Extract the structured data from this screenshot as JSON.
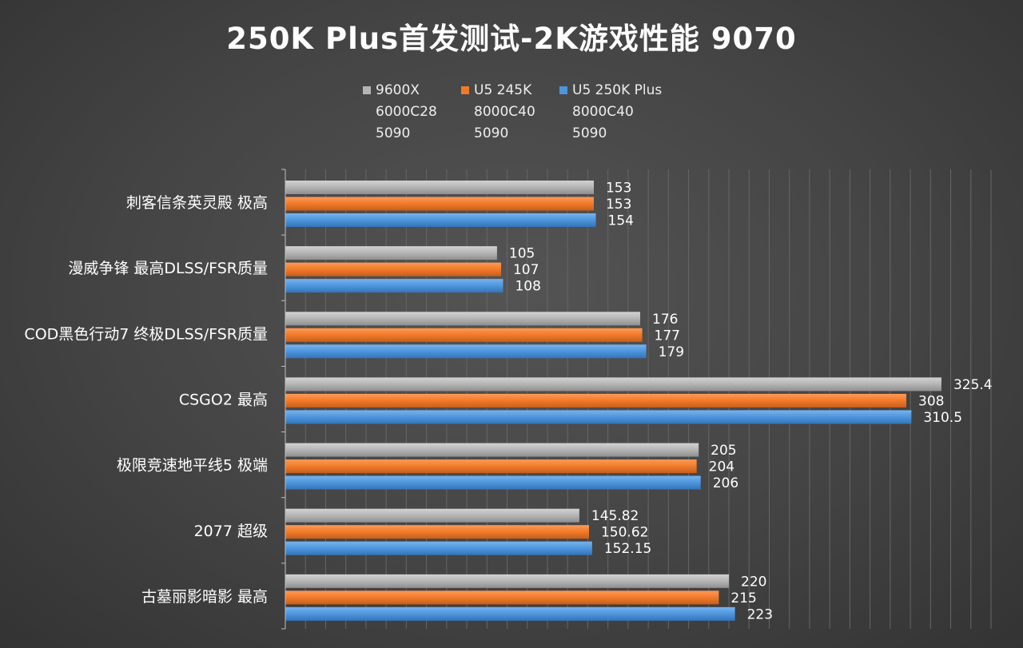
{
  "chart_data": {
    "type": "bar",
    "orientation": "horizontal",
    "title": "250K Plus首发测试-2K游戏性能 9070",
    "xlabel": "",
    "ylabel": "",
    "xlim": [
      0,
      350
    ],
    "grid": true,
    "legend_position": "top",
    "categories": [
      "刺客信条英灵殿 极高",
      "漫威争锋 最高DLSS/FSR质量",
      "COD黑色行动7 终极DLSS/FSR质量",
      "CSGO2 最高",
      "极限竞速地平线5 极端",
      "2077 超级",
      "古墓丽影暗影 最高"
    ],
    "series": [
      {
        "name": "9600X 6000C28 5090",
        "legend_lines": [
          "9600X",
          "6000C28",
          "5090"
        ],
        "color": "#b4b4b4",
        "values": [
          153,
          105,
          176,
          325.4,
          205,
          145.82,
          220
        ],
        "labels": [
          "153",
          "105",
          "176",
          "325.4",
          "205",
          "145.82",
          "220"
        ]
      },
      {
        "name": "U5 245K 8000C40 5090",
        "legend_lines": [
          "U5 245K",
          "8000C40",
          "5090"
        ],
        "color": "#f07a2a",
        "values": [
          153,
          107,
          177,
          308,
          204,
          150.62,
          215
        ],
        "labels": [
          "153",
          "107",
          "177",
          "308",
          "204",
          "150.62",
          "215"
        ]
      },
      {
        "name": "U5 250K Plus 8000C40 5090",
        "legend_lines": [
          "U5 250K Plus",
          "8000C40",
          "5090"
        ],
        "color": "#4d95dc",
        "values": [
          154,
          108,
          179,
          310.5,
          206,
          152.15,
          223
        ],
        "labels": [
          "154",
          "108",
          "179",
          "310.5",
          "206",
          "152.15",
          "223"
        ]
      }
    ]
  }
}
